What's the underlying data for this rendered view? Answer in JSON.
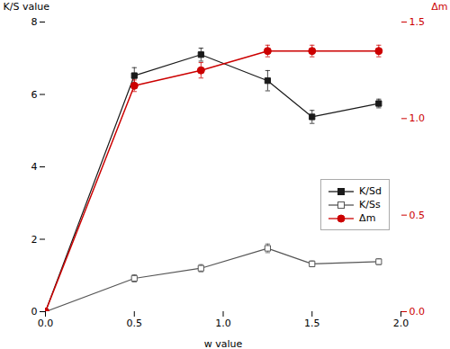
{
  "chart_data": {
    "type": "line",
    "xlabel": "w value",
    "ylabel": "K/S value",
    "y2label": "Δm",
    "x": [
      0.0,
      0.5,
      0.875,
      1.25,
      1.5,
      1.875
    ],
    "series": [
      {
        "name": "K/Sd",
        "color": "#1a1a1a",
        "marker": "square",
        "values": [
          0.0,
          6.52,
          7.1,
          6.38,
          5.38,
          5.75
        ],
        "errors": [
          0.0,
          0.22,
          0.18,
          0.28,
          0.18,
          0.12
        ]
      },
      {
        "name": "K/Ss",
        "color": "#555555",
        "marker": "open_square",
        "values": [
          0.0,
          0.92,
          1.2,
          1.75,
          1.32,
          1.38
        ],
        "errors": [
          0.0,
          0.1,
          0.1,
          0.12,
          0.08,
          0.08
        ]
      },
      {
        "name": "Δm",
        "color": "#cc0000",
        "marker": "circle",
        "axis": "y2",
        "values": [
          0.0,
          1.17,
          1.25,
          1.35,
          1.35,
          1.35
        ],
        "errors": [
          0.0,
          0.03,
          0.04,
          0.03,
          0.03,
          0.03
        ]
      }
    ],
    "xlim": [
      0.0,
      2.0
    ],
    "xticks": [
      {
        "value": 0.0,
        "label": "0.0"
      },
      {
        "value": 0.5,
        "label": "0.5"
      },
      {
        "value": 1.0,
        "label": "1.0"
      },
      {
        "value": 1.5,
        "label": "1.5"
      },
      {
        "value": 2.0,
        "label": "2.0"
      }
    ],
    "ylim": [
      0,
      8
    ],
    "yticks": [
      0,
      2,
      4,
      6,
      8
    ],
    "y2lim": [
      0.0,
      1.5
    ],
    "y2ticks": [
      {
        "value": 0.0,
        "label": "0.0"
      },
      {
        "value": 0.5,
        "label": "0.5"
      },
      {
        "value": 1.0,
        "label": "1.0"
      },
      {
        "value": 1.5,
        "label": "1.5"
      }
    ],
    "grid": false,
    "legend": "lower right"
  }
}
